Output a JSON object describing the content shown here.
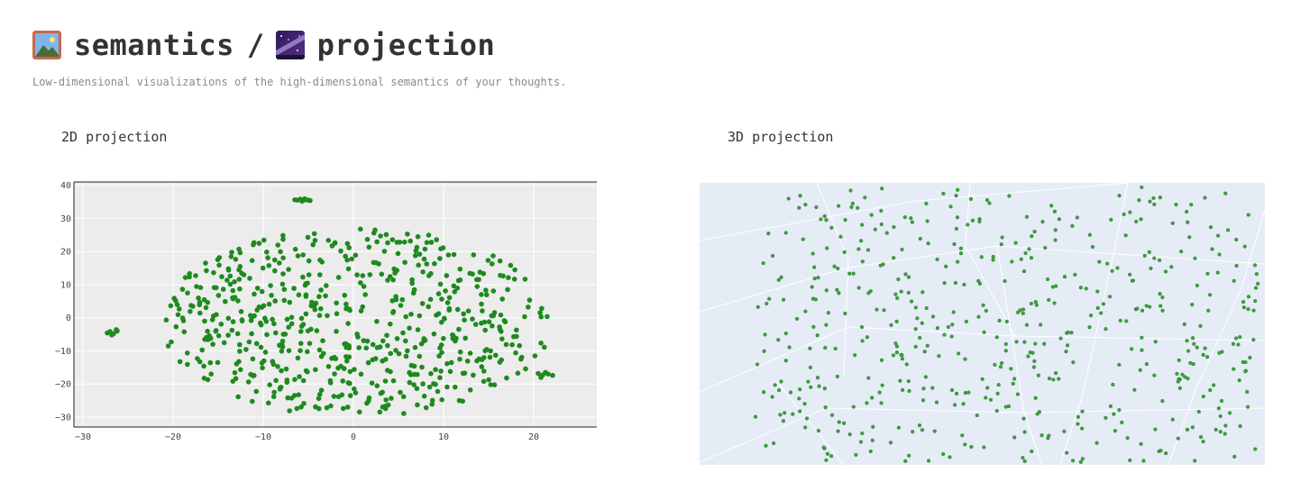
{
  "header": {
    "title_left": "semantics",
    "title_sep": "/",
    "title_right": "projection",
    "left_icon": "landscape-picture-icon",
    "right_icon": "milky-way-icon",
    "subtitle": "Low-dimensional visualizations of the high-dimensional semantics of your thoughts."
  },
  "panels": {
    "p2d_title": "2D projection",
    "p3d_title": "3D projection"
  },
  "colors": {
    "marker": "#1e8a1e",
    "marker3d": "#3aa13a",
    "plot_bg_2d": "#ececec",
    "scene_bg_3d": "#e5ecf6",
    "grid": "#ffffff"
  },
  "chart_data": [
    {
      "type": "scatter",
      "title": "2D projection",
      "xlabel": "",
      "ylabel": "",
      "xlim": [
        -31,
        27
      ],
      "ylim": [
        -33,
        41
      ],
      "xticks": [
        -30,
        -20,
        -10,
        0,
        10,
        20
      ],
      "yticks": [
        -30,
        -20,
        -10,
        0,
        10,
        20,
        30,
        40
      ],
      "grid": true,
      "legend": "none",
      "clusters": [
        {
          "name": "",
          "points": [
            [
              -27,
              -4.2
            ],
            [
              -26.6,
              -4.8
            ],
            [
              -26.2,
              -4.0
            ],
            [
              -26.8,
              -5.2
            ],
            [
              -26.3,
              -3.6
            ],
            [
              -27.3,
              -4.6
            ]
          ]
        },
        {
          "name": "",
          "points": [
            [
              -6.2,
              35.5
            ],
            [
              -5.9,
              35.8
            ],
            [
              -5.6,
              35.4
            ],
            [
              -5.3,
              35.7
            ],
            [
              -5.0,
              35.5
            ],
            [
              -6.5,
              35.6
            ],
            [
              -5.7,
              35.2
            ],
            [
              -5.4,
              35.9
            ],
            [
              -4.8,
              35.4
            ]
          ]
        },
        {
          "name": "",
          "points": [
            [
              20.5,
              -16.8
            ],
            [
              21.0,
              -17.3
            ],
            [
              21.6,
              -17.0
            ],
            [
              22.1,
              -17.4
            ],
            [
              20.8,
              -18.0
            ],
            [
              21.3,
              -16.5
            ]
          ]
        }
      ],
      "main_region": {
        "point_count": 620,
        "x_range": [
          -20,
          23.5
        ],
        "y_range": [
          -29,
          28
        ]
      }
    },
    {
      "type": "scatter",
      "title": "3D projection",
      "xlabel": "",
      "ylabel": "",
      "grid": true,
      "legend": "none",
      "point_count": 520
    }
  ]
}
